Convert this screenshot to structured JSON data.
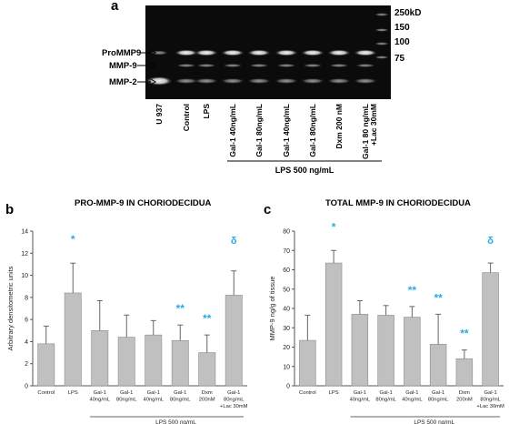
{
  "figure": {
    "panel_a": {
      "letter": "a",
      "mw_markers": [
        "250kD",
        "150",
        "100",
        "75"
      ],
      "band_labels": [
        "ProMMP9",
        "MMP-9",
        "MMP-2"
      ],
      "lanes": [
        "U 937",
        "Control",
        "LPS",
        "Gal-1 40ng/mL",
        "Gal-1 80ng/mL",
        "Gal-1 40ng/mL",
        "Gal-1 80ng/mL",
        "Dxm 200 nM",
        "Gal-1 80 ng/mL\n+Lac 30mM"
      ],
      "group_label": "LPS 500 ng/mL"
    },
    "panel_b": {
      "letter": "b",
      "title": "PRO-MMP-9 IN CHORIODECIDUA"
    },
    "panel_c": {
      "letter": "c",
      "title": "TOTAL MMP-9 IN CHORIODECIDUA"
    },
    "colors": {
      "bar": "#c0c0c0",
      "annotation": "#29abe2",
      "gel_bg": "#0b0b0b"
    }
  },
  "chart_data": [
    {
      "type": "bar",
      "ylabel": "Arbitrary densitometric units",
      "ylim": [
        0,
        14
      ],
      "yticks": [
        0,
        2,
        4,
        6,
        8,
        10,
        12,
        14
      ],
      "categories": [
        "Control",
        "LPS",
        "Gal-1\n40ng/mL",
        "Gal-1\n80ng/mL",
        "Gal-1\n40ng/mL",
        "Gal-1\n80ng/mL",
        "Dxm\n200nM",
        "Gal-1\n80ng/mL\n+Lac 30mM"
      ],
      "values": [
        3.8,
        8.4,
        5.0,
        4.4,
        4.6,
        4.1,
        3.0,
        8.2
      ],
      "errors": [
        1.6,
        2.7,
        2.7,
        2.0,
        1.3,
        1.4,
        1.6,
        2.2
      ],
      "annotations": [
        "",
        "*",
        "",
        "",
        "",
        "**",
        "**",
        "δ"
      ],
      "group_label": "LPS 500 ng/mL",
      "group_range": [
        2,
        7
      ]
    },
    {
      "type": "bar",
      "ylabel": "MMP-9 ng/g of tissue",
      "ylim": [
        0,
        80
      ],
      "yticks": [
        0,
        10,
        20,
        30,
        40,
        50,
        60,
        70,
        80
      ],
      "categories": [
        "Control",
        "LPS",
        "Gal-1\n40ng/mL",
        "Gal-1\n80ng/mL",
        "Gal-1\n40ng/mL",
        "Gal-1\n80ng/mL",
        "Dxm\n200nM",
        "Gal-1\n80ng/mL\n+Lac 30mM"
      ],
      "values": [
        23.5,
        63.5,
        37.0,
        36.5,
        35.5,
        21.5,
        14.0,
        58.5
      ],
      "errors": [
        13.0,
        6.5,
        7.0,
        5.0,
        5.5,
        15.5,
        4.5,
        5.0
      ],
      "annotations": [
        "",
        "*",
        "",
        "",
        "**",
        "**",
        "**",
        "δ"
      ],
      "group_label": "LPS 500 ng/mL",
      "group_range": [
        2,
        7
      ]
    }
  ]
}
